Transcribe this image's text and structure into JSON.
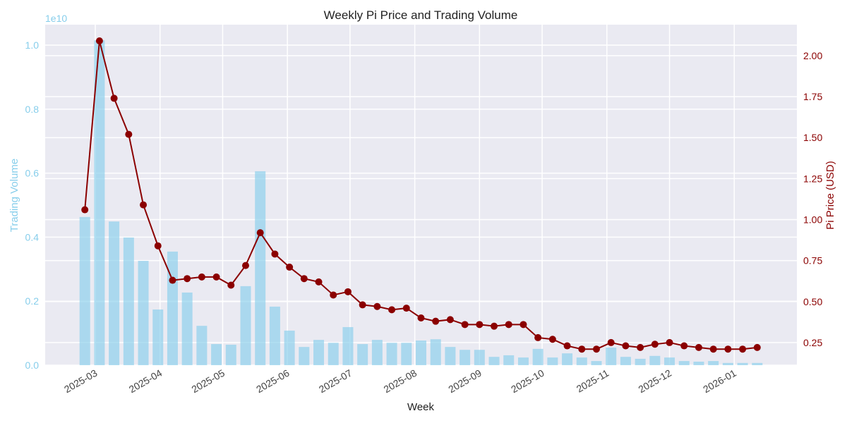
{
  "chart_data": {
    "type": "bar+line",
    "title": "Weekly Pi Price and Trading Volume",
    "xlabel": "Week",
    "ylabel_left": "Trading Volume",
    "ylabel_right": "Pi Price (USD)",
    "left_offset_label": "1e10",
    "xlim": [
      "2025-02-05",
      "2026-01-31"
    ],
    "ylim_left": [
      0,
      1.064
    ],
    "ylim_right": [
      0.112,
      2.189
    ],
    "x_ticks": [
      "2025-03",
      "2025-04",
      "2025-05",
      "2025-06",
      "2025-07",
      "2025-08",
      "2025-09",
      "2025-10",
      "2025-11",
      "2025-12",
      "2026-01"
    ],
    "y_ticks_left": [
      "0.0",
      "0.2",
      "0.4",
      "0.6",
      "0.8",
      "1.0"
    ],
    "y_ticks_right": [
      "0.25",
      "0.50",
      "0.75",
      "1.00",
      "1.25",
      "1.50",
      "1.75",
      "2.00"
    ],
    "grid": true,
    "colors": {
      "volume": "#87ceeb",
      "price": "#8b0000",
      "background": "#eaeaf2"
    },
    "start_week": "2025-02-24",
    "series": [
      {
        "axis": "left",
        "kind": "bar",
        "unit": "1e10",
        "values": [
          0.463,
          1.015,
          0.449,
          0.399,
          0.326,
          0.174,
          0.355,
          0.227,
          0.123,
          0.066,
          0.064,
          0.247,
          0.606,
          0.183,
          0.108,
          0.057,
          0.079,
          0.07,
          0.119,
          0.066,
          0.079,
          0.07,
          0.07,
          0.077,
          0.081,
          0.057,
          0.048,
          0.048,
          0.026,
          0.031,
          0.024,
          0.051,
          0.024,
          0.037,
          0.024,
          0.013,
          0.055,
          0.026,
          0.02,
          0.029,
          0.024,
          0.013,
          0.011,
          0.013,
          0.007,
          0.007,
          0.007
        ]
      },
      {
        "axis": "right",
        "kind": "line",
        "values": [
          1.06,
          2.09,
          1.74,
          1.52,
          1.09,
          0.84,
          0.63,
          0.64,
          0.65,
          0.65,
          0.6,
          0.72,
          0.92,
          0.79,
          0.71,
          0.64,
          0.62,
          0.54,
          0.56,
          0.48,
          0.47,
          0.45,
          0.46,
          0.4,
          0.38,
          0.39,
          0.36,
          0.36,
          0.35,
          0.36,
          0.36,
          0.28,
          0.27,
          0.23,
          0.21,
          0.21,
          0.25,
          0.23,
          0.22,
          0.24,
          0.25,
          0.23,
          0.22,
          0.21,
          0.21,
          0.21,
          0.22
        ]
      }
    ]
  }
}
